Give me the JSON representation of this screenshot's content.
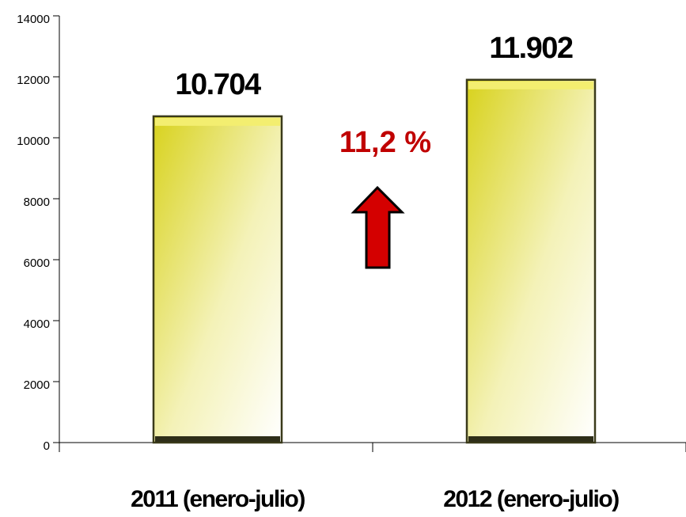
{
  "chart_data": {
    "type": "bar",
    "categories": [
      "2011 (enero-julio)",
      "2012 (enero-julio)"
    ],
    "values": [
      10704,
      11902
    ],
    "value_labels": [
      "10.704",
      "11.902"
    ],
    "annotation": "11,2 %",
    "color": "#e6e04a",
    "ylim": [
      0,
      14000
    ],
    "yticks": [
      0,
      2000,
      4000,
      6000,
      8000,
      10000,
      12000,
      14000
    ],
    "grid": false
  }
}
